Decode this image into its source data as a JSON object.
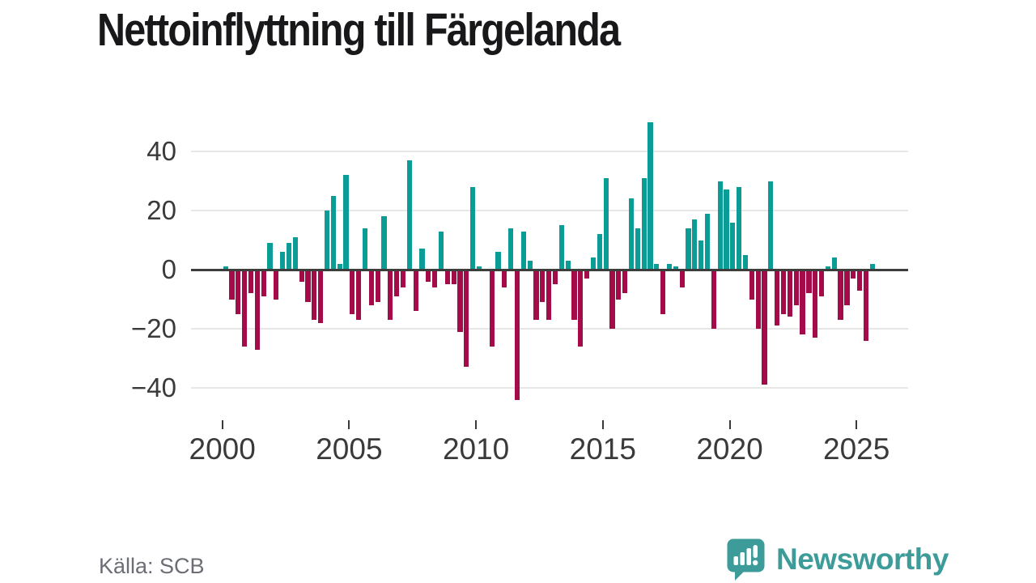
{
  "title": "Nettoinflyttning till Färgelanda",
  "source": "Källa: SCB",
  "brand": {
    "name": "Newsworthy",
    "logo_icon": "speech-bubble-bar-chart-icon"
  },
  "colors": {
    "positive_bar": "#0a9c95",
    "negative_bar": "#a30b49",
    "zero_axis": "#3d3d3c",
    "gridline": "#e7e7e7",
    "axis_text": "#3a3a3a",
    "source_text": "#6b6e75",
    "brand_teal": "#3d9c99",
    "title_text": "#18181a"
  },
  "chart_data": {
    "type": "bar",
    "title": "Nettoinflyttning till Färgelanda",
    "xlabel": "",
    "ylabel": "",
    "frequency": "quarterly",
    "start_period": "2000-Q1",
    "end_period": "2025-Q3",
    "ylim": [
      -50,
      55
    ],
    "y_ticks": [
      40,
      20,
      0,
      -20,
      -40
    ],
    "y_tick_labels": [
      "40",
      "20",
      "0",
      "−20",
      "−40"
    ],
    "x_tick_years": [
      2000,
      2005,
      2010,
      2015,
      2020,
      2025
    ],
    "x_tick_labels": [
      "2000",
      "2005",
      "2010",
      "2015",
      "2020",
      "2025"
    ],
    "grid": "horizontal",
    "legend": "none",
    "series": [
      {
        "name": "Nettoinflyttning",
        "values": [
          1,
          -10,
          -15,
          -26,
          -8,
          -27,
          -9,
          9,
          -10,
          6,
          9,
          11,
          -4,
          -11,
          -17,
          -18,
          20,
          25,
          2,
          32,
          -15,
          -17,
          14,
          -12,
          -11,
          18,
          -17,
          -9,
          -6,
          37,
          -14,
          7,
          -4,
          -6,
          13,
          -5,
          -5,
          -21,
          -33,
          28,
          1,
          0,
          -26,
          6,
          -6,
          14,
          -44,
          13,
          3,
          -17,
          -11,
          -17,
          -5,
          15,
          3,
          -17,
          -26,
          -3,
          4,
          12,
          31,
          -20,
          -10,
          -8,
          24,
          14,
          31,
          50,
          2,
          -15,
          2,
          1,
          -6,
          14,
          17,
          10,
          19,
          -20,
          30,
          27,
          16,
          28,
          5,
          -10,
          -20,
          -39,
          30,
          -19,
          -15,
          -16,
          -12,
          -22,
          -8,
          -23,
          -9,
          1,
          4,
          -17,
          -12,
          -3,
          -7,
          -24,
          2
        ]
      }
    ]
  }
}
